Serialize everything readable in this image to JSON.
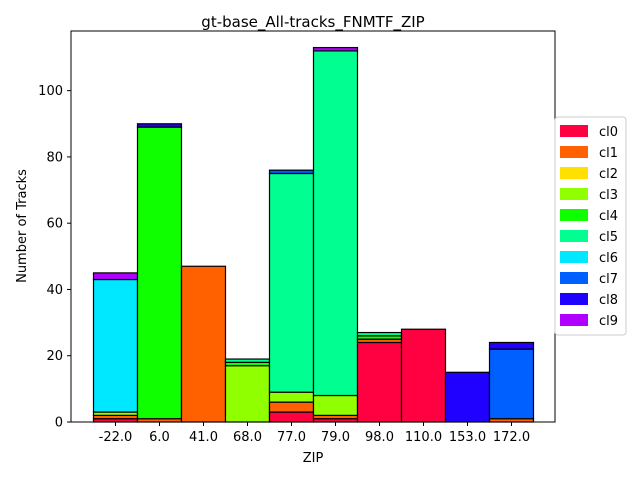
{
  "chart_data": {
    "type": "bar",
    "stacked": true,
    "title": "gt-base_All-tracks_FNMTF_ZIP",
    "xlabel": "ZIP",
    "ylabel": "Number of Tracks",
    "ylim": [
      0,
      118
    ],
    "yticks": [
      0,
      20,
      40,
      60,
      80,
      100
    ],
    "grid": false,
    "legend_position": "right",
    "categories": [
      "-22.0",
      "6.0",
      "41.0",
      "68.0",
      "77.0",
      "79.0",
      "98.0",
      "110.0",
      "153.0",
      "172.0"
    ],
    "series": [
      {
        "name": "cl0",
        "color": "#ff0040",
        "values": [
          1,
          0,
          0,
          0,
          3,
          1,
          24,
          28,
          0,
          0
        ]
      },
      {
        "name": "cl1",
        "color": "#ff6000",
        "values": [
          1,
          1,
          47,
          0,
          3,
          1,
          1,
          0,
          0,
          1
        ]
      },
      {
        "name": "cl2",
        "color": "#ffe000",
        "values": [
          0,
          0,
          0,
          0,
          0,
          0,
          0,
          0,
          0,
          0
        ]
      },
      {
        "name": "cl3",
        "color": "#90ff00",
        "values": [
          1,
          0,
          0,
          17,
          3,
          6,
          0,
          0,
          0,
          0
        ]
      },
      {
        "name": "cl4",
        "color": "#10ff00",
        "values": [
          0,
          88,
          0,
          1,
          0,
          0,
          1,
          0,
          0,
          0
        ]
      },
      {
        "name": "cl5",
        "color": "#00ff90",
        "values": [
          0,
          0,
          0,
          1,
          66,
          104,
          1,
          0,
          0,
          0
        ]
      },
      {
        "name": "cl6",
        "color": "#00e8ff",
        "values": [
          40,
          0,
          0,
          0,
          0,
          0,
          0,
          0,
          0,
          0
        ]
      },
      {
        "name": "cl7",
        "color": "#0060ff",
        "values": [
          0,
          0,
          0,
          0,
          1,
          0,
          0,
          0,
          0,
          21
        ]
      },
      {
        "name": "cl8",
        "color": "#2000ff",
        "values": [
          0,
          1,
          0,
          0,
          0,
          0,
          0,
          0,
          15,
          2
        ]
      },
      {
        "name": "cl9",
        "color": "#b000ff",
        "values": [
          2,
          0,
          0,
          0,
          0,
          1,
          0,
          0,
          0,
          0
        ]
      }
    ]
  }
}
